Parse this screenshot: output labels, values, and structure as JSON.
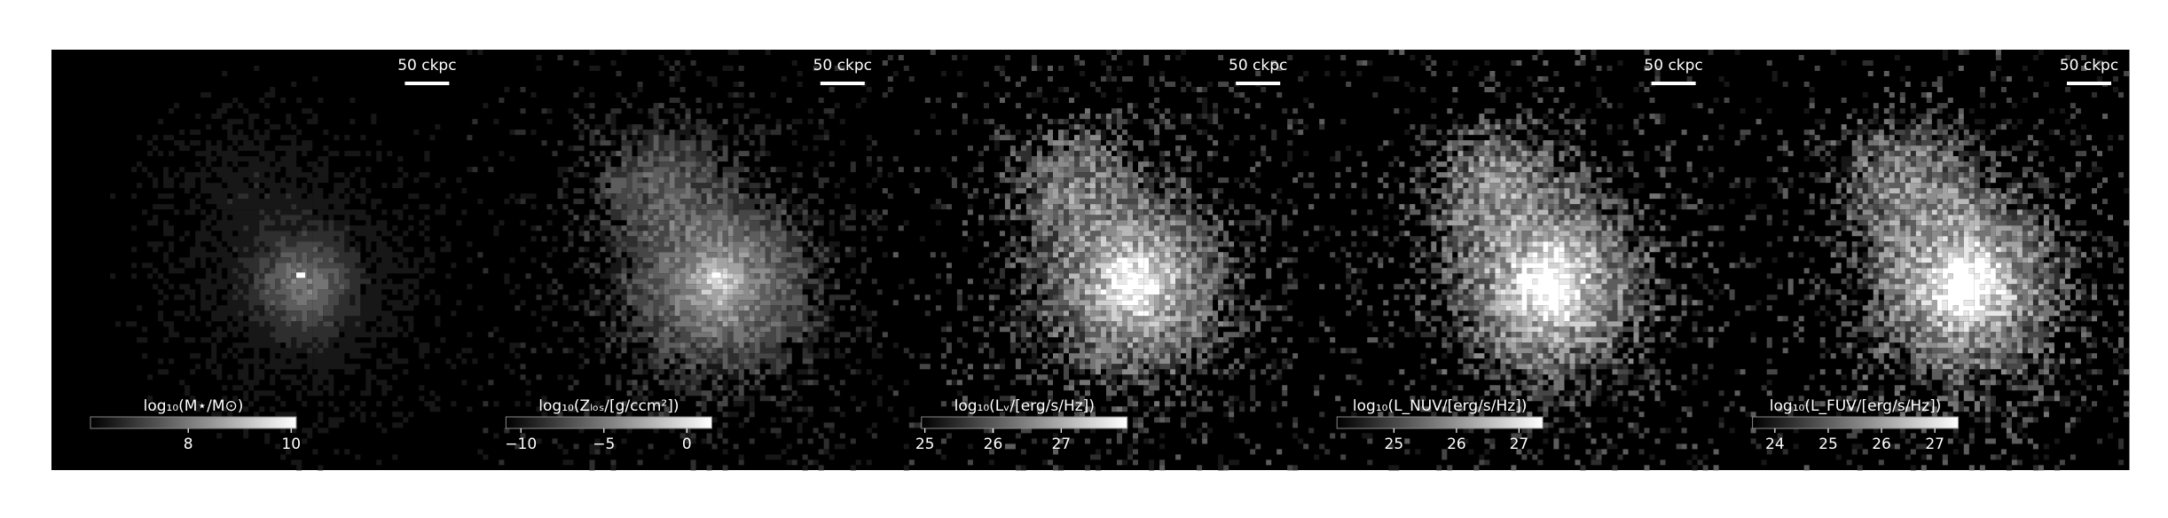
{
  "panels": [
    {
      "scale_bar": "50 ckpc",
      "colorbar": {
        "label": "log₁₀(M⋆/M⊙)",
        "lim": [
          6.1,
          10.1
        ],
        "ticks": [
          8,
          10
        ]
      }
    },
    {
      "scale_bar": "50 ckpc",
      "colorbar": {
        "label": "log₁₀(Zₗₒₛ/[g/ccm²])",
        "lim": [
          -10.9,
          1.5
        ],
        "ticks": [
          {
            "value": -10,
            "label": "−10"
          },
          {
            "value": -5,
            "label": "−5"
          },
          0
        ]
      }
    },
    {
      "scale_bar": "50 ckpc",
      "colorbar": {
        "label": "log₁₀(Lᵥ/[erg/s/Hz])",
        "lim": [
          24.95,
          27.97
        ],
        "ticks": [
          25,
          26,
          27
        ]
      }
    },
    {
      "scale_bar": "50 ckpc",
      "colorbar": {
        "label": "log₁₀(L_NUV/[erg/s/Hz])",
        "lim": [
          24.09,
          27.38
        ],
        "ticks": [
          25,
          26,
          27
        ]
      }
    },
    {
      "scale_bar": "50 ckpc",
      "colorbar": {
        "label": "log₁₀(L_FUV/[erg/s/Hz])",
        "lim": [
          23.58,
          27.44
        ],
        "ticks": [
          24,
          25,
          26,
          27
        ]
      }
    }
  ]
}
